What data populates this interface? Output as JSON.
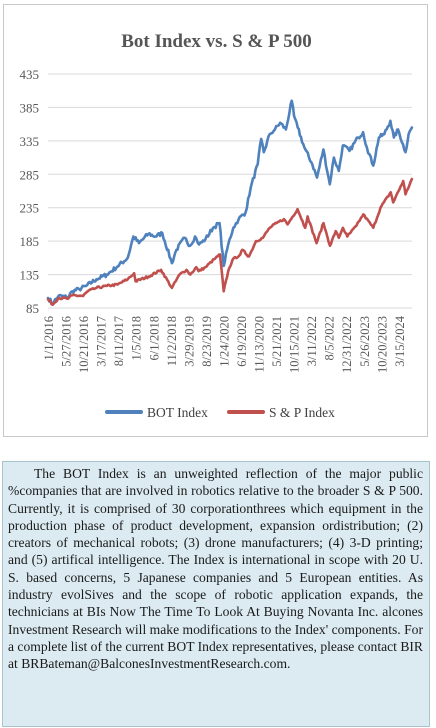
{
  "chart_data": {
    "type": "line",
    "title": "Bot Index vs. S & P 500",
    "xlabel": "",
    "ylabel": "",
    "ylim": [
      85,
      435
    ],
    "y_ticks": [
      85,
      135,
      185,
      235,
      285,
      335,
      385,
      435
    ],
    "x_tick_labels": [
      "1/1/2016",
      "5/27/2016",
      "10/21/2016",
      "3/17/2017",
      "8/11/2017",
      "1/5/2018",
      "6/1/2018",
      "11/2/2018",
      "3/29/2019",
      "8/23/2019",
      "1/24/2020",
      "6/19/2020",
      "11/13/2020",
      "5/21/2021",
      "10/15/2021",
      "3/11/2022",
      "8/5/2022",
      "12/31/2022",
      "5/26/2023",
      "10/20/2023",
      "3/15/2024"
    ],
    "x_range": [
      "2016-01-01",
      "2024-10-01"
    ],
    "grid": "horizontal",
    "legend_position": "bottom",
    "series": [
      {
        "name": "BOT Index",
        "color": "#4f81bd",
        "points": [
          [
            "2016-01-01",
            100
          ],
          [
            "2016-02-11",
            92
          ],
          [
            "2016-04-01",
            103
          ],
          [
            "2016-06-24",
            101
          ],
          [
            "2016-08-01",
            110
          ],
          [
            "2016-10-01",
            113
          ],
          [
            "2016-12-01",
            118
          ],
          [
            "2017-03-01",
            128
          ],
          [
            "2017-06-01",
            135
          ],
          [
            "2017-09-01",
            147
          ],
          [
            "2017-12-01",
            160
          ],
          [
            "2018-01-20",
            192
          ],
          [
            "2018-03-10",
            182
          ],
          [
            "2018-06-01",
            196
          ],
          [
            "2018-08-01",
            192
          ],
          [
            "2018-10-01",
            197
          ],
          [
            "2018-12-24",
            152
          ],
          [
            "2019-02-01",
            172
          ],
          [
            "2019-04-15",
            190
          ],
          [
            "2019-06-01",
            178
          ],
          [
            "2019-07-15",
            192
          ],
          [
            "2019-08-20",
            180
          ],
          [
            "2019-10-15",
            188
          ],
          [
            "2019-12-20",
            205
          ],
          [
            "2020-02-15",
            212
          ],
          [
            "2020-03-23",
            148
          ],
          [
            "2020-05-01",
            180
          ],
          [
            "2020-06-15",
            205
          ],
          [
            "2020-08-01",
            218
          ],
          [
            "2020-10-01",
            228
          ],
          [
            "2020-11-15",
            265
          ],
          [
            "2021-01-15",
            300
          ],
          [
            "2021-02-15",
            338
          ],
          [
            "2021-03-10",
            318
          ],
          [
            "2021-05-01",
            345
          ],
          [
            "2021-06-15",
            352
          ],
          [
            "2021-08-01",
            362
          ],
          [
            "2021-09-20",
            352
          ],
          [
            "2021-11-10",
            395
          ],
          [
            "2021-12-01",
            372
          ],
          [
            "2022-01-01",
            355
          ],
          [
            "2022-03-01",
            325
          ],
          [
            "2022-05-10",
            300
          ],
          [
            "2022-06-20",
            280
          ],
          [
            "2022-08-15",
            322
          ],
          [
            "2022-10-10",
            270
          ],
          [
            "2022-11-15",
            310
          ],
          [
            "2022-12-28",
            290
          ],
          [
            "2023-02-01",
            328
          ],
          [
            "2023-04-01",
            320
          ],
          [
            "2023-06-15",
            340
          ],
          [
            "2023-07-30",
            348
          ],
          [
            "2023-09-01",
            325
          ],
          [
            "2023-10-27",
            298
          ],
          [
            "2023-12-15",
            340
          ],
          [
            "2024-02-01",
            345
          ],
          [
            "2024-03-25",
            365
          ],
          [
            "2024-04-25",
            340
          ],
          [
            "2024-06-01",
            352
          ],
          [
            "2024-08-05",
            318
          ],
          [
            "2024-09-01",
            345
          ],
          [
            "2024-09-30",
            355
          ]
        ]
      },
      {
        "name": "S & P Index",
        "color": "#c0504d",
        "points": [
          [
            "2016-01-01",
            98
          ],
          [
            "2016-02-11",
            90
          ],
          [
            "2016-04-01",
            100
          ],
          [
            "2016-06-27",
            99
          ],
          [
            "2016-08-01",
            104
          ],
          [
            "2016-11-04",
            103
          ],
          [
            "2016-12-15",
            110
          ],
          [
            "2017-03-01",
            115
          ],
          [
            "2017-06-01",
            118
          ],
          [
            "2017-09-01",
            120
          ],
          [
            "2017-12-01",
            128
          ],
          [
            "2018-01-26",
            137
          ],
          [
            "2018-02-08",
            125
          ],
          [
            "2018-06-01",
            132
          ],
          [
            "2018-09-20",
            142
          ],
          [
            "2018-12-24",
            115
          ],
          [
            "2019-03-01",
            135
          ],
          [
            "2019-05-01",
            142
          ],
          [
            "2019-06-03",
            135
          ],
          [
            "2019-07-26",
            146
          ],
          [
            "2019-08-15",
            140
          ],
          [
            "2019-10-15",
            146
          ],
          [
            "2019-12-31",
            158
          ],
          [
            "2020-02-19",
            165
          ],
          [
            "2020-03-23",
            110
          ],
          [
            "2020-05-01",
            140
          ],
          [
            "2020-06-08",
            157
          ],
          [
            "2020-08-15",
            165
          ],
          [
            "2020-09-02",
            172
          ],
          [
            "2020-10-30",
            162
          ],
          [
            "2020-12-31",
            185
          ],
          [
            "2021-03-01",
            190
          ],
          [
            "2021-05-01",
            205
          ],
          [
            "2021-07-01",
            212
          ],
          [
            "2021-09-02",
            218
          ],
          [
            "2021-10-04",
            210
          ],
          [
            "2021-12-31",
            233
          ],
          [
            "2022-03-08",
            205
          ],
          [
            "2022-03-29",
            222
          ],
          [
            "2022-06-16",
            182
          ],
          [
            "2022-08-16",
            212
          ],
          [
            "2022-10-12",
            178
          ],
          [
            "2022-12-01",
            200
          ],
          [
            "2022-12-28",
            190
          ],
          [
            "2023-02-02",
            205
          ],
          [
            "2023-03-13",
            192
          ],
          [
            "2023-06-01",
            208
          ],
          [
            "2023-07-31",
            225
          ],
          [
            "2023-10-27",
            205
          ],
          [
            "2023-12-29",
            235
          ],
          [
            "2024-03-28",
            258
          ],
          [
            "2024-04-19",
            243
          ],
          [
            "2024-07-16",
            275
          ],
          [
            "2024-08-05",
            255
          ],
          [
            "2024-09-30",
            278
          ]
        ]
      }
    ]
  },
  "caption": {
    "text": "The BOT Index is an unweighted reflection of the major public %companies that are involved in robotics relative to the broader S & P 500. Currently, it is comprised of 30 corporationthrees which equipment in the production phase of product development, expansion ordistribution; (2) creators of mechanical robots; (3) drone manufacturers; (4) 3-D printing; and (5) artifical intelligence. The Index is international in scope with 20 U. S. based concerns, 5 Japanese companies and 5 European entities. As industry evolSives and the scope of robotic application expands, the technicians at BIs Now The Time To Look At Buying Novanta Inc. alcones Investment Research will make modifications to the Index' components. For a complete list of the current BOT Index representatives, please contact BIR at BRBateman@BalconesInvestmentResearch.com."
  }
}
